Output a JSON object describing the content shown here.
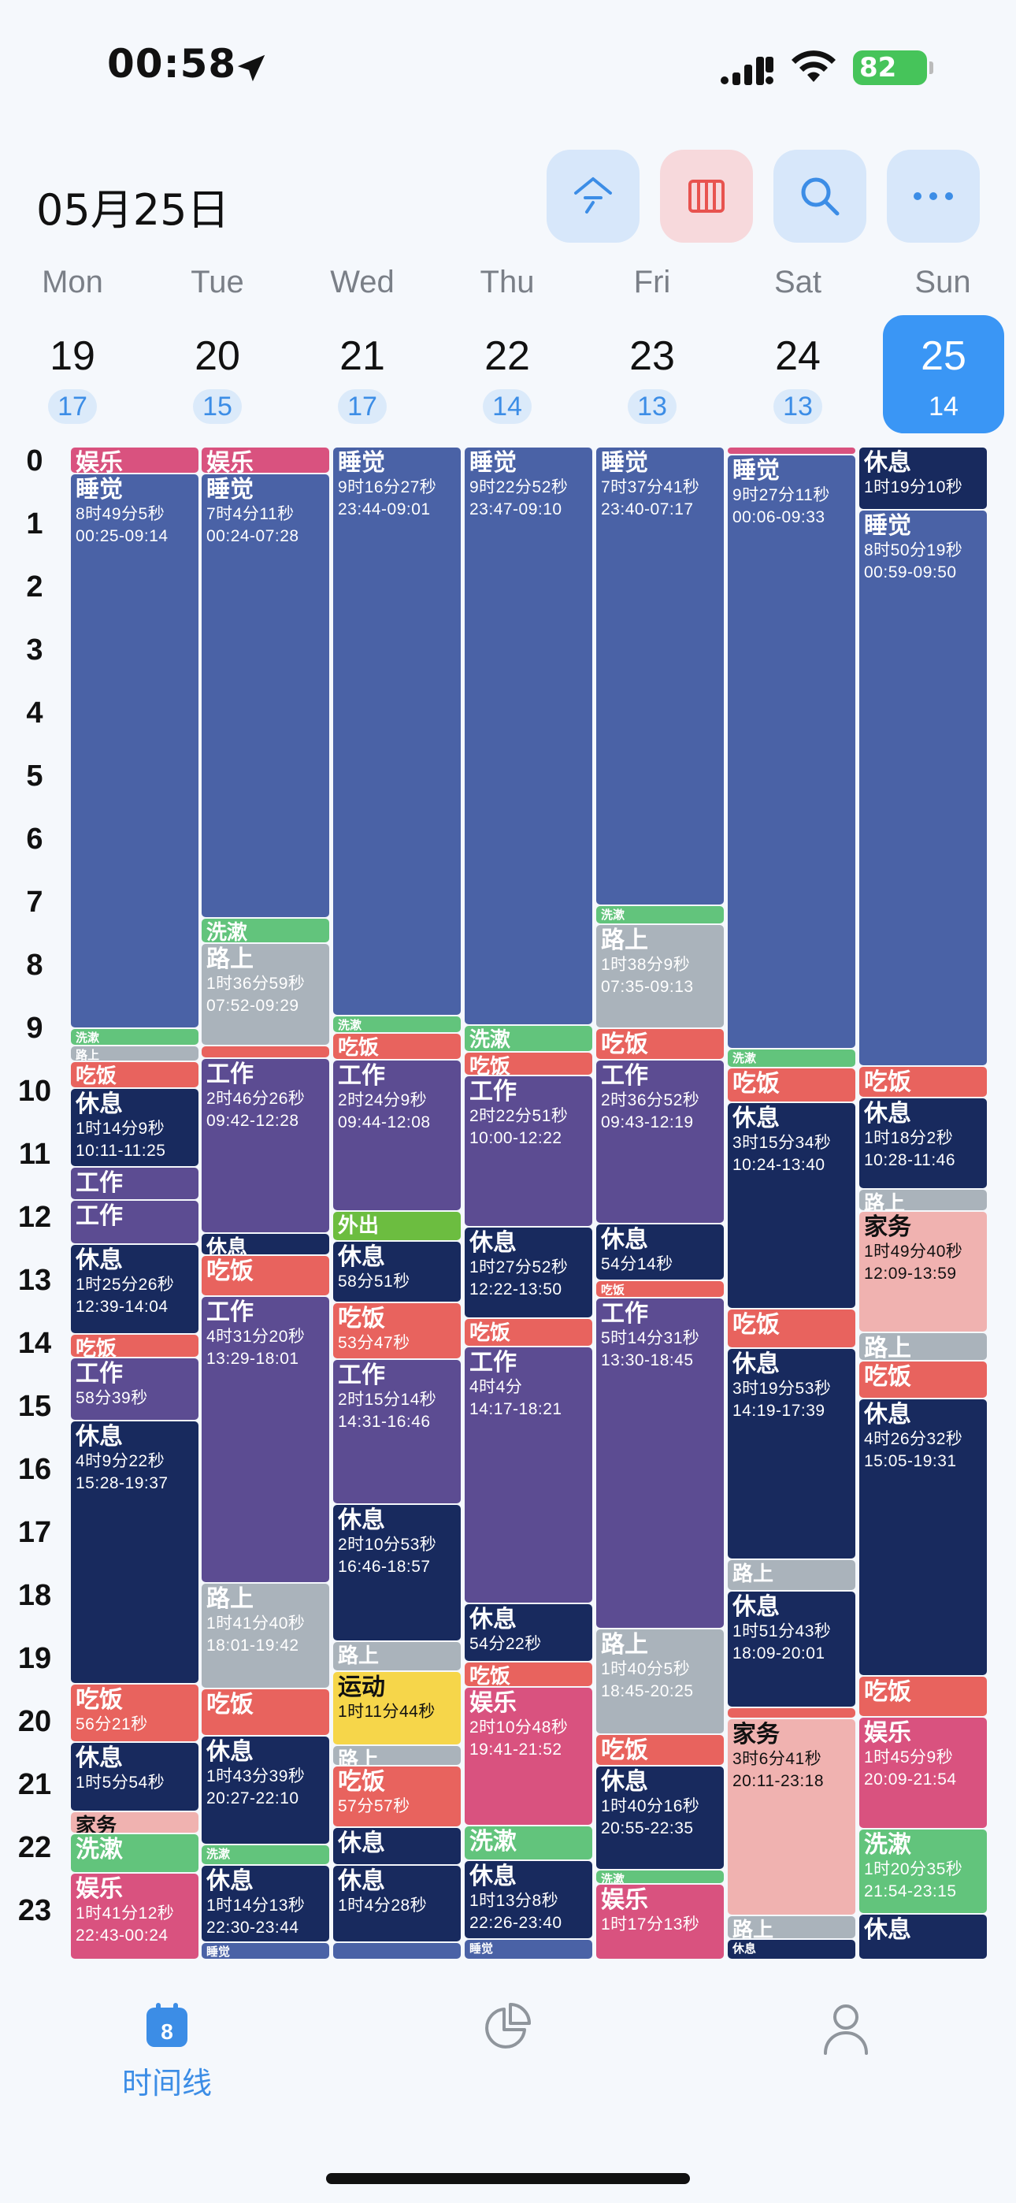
{
  "status_bar": {
    "time": "00:58",
    "battery": "82"
  },
  "header": {
    "date_title": "05月25日",
    "buttons": [
      {
        "name": "today-button",
        "icon": "today-icon"
      },
      {
        "name": "view-toggle-button",
        "icon": "columns-icon"
      },
      {
        "name": "search-button",
        "icon": "search-icon"
      },
      {
        "name": "more-button",
        "icon": "ellipsis-icon"
      }
    ]
  },
  "days": [
    {
      "name": "Mon",
      "num": "19",
      "badge": "17"
    },
    {
      "name": "Tue",
      "num": "20",
      "badge": "15"
    },
    {
      "name": "Wed",
      "num": "21",
      "badge": "17"
    },
    {
      "name": "Thu",
      "num": "22",
      "badge": "14"
    },
    {
      "name": "Fri",
      "num": "23",
      "badge": "13"
    },
    {
      "name": "Sat",
      "num": "24",
      "badge": "13"
    },
    {
      "name": "Sun",
      "num": "25",
      "badge": "14",
      "selected": true
    }
  ],
  "hours": [
    "0",
    "1",
    "2",
    "3",
    "4",
    "5",
    "6",
    "7",
    "8",
    "9",
    "10",
    "11",
    "12",
    "13",
    "14",
    "15",
    "16",
    "17",
    "18",
    "19",
    "20",
    "21",
    "22",
    "23"
  ],
  "colors": {
    "sleep": "#4a62a6",
    "rest": "#182a5e",
    "work": "#5c4c92",
    "eat": "#e8635e",
    "wash": "#62c47c",
    "road": "#aab3bb",
    "fun": "#d9527f",
    "house": "#f0b2b0",
    "out": "#6cbd40",
    "sport": "#f6d64a"
  },
  "events": [
    [
      {
        "c": "fun",
        "s": 0,
        "e": 0.42,
        "t": "娱乐"
      },
      {
        "c": "sleep",
        "s": 0.42,
        "e": 9.23,
        "t": "睡觉",
        "d1": "8时49分5秒",
        "d2": "00:25-09:14"
      },
      {
        "c": "wash",
        "s": 9.23,
        "e": 9.5,
        "t": "洗漱",
        "sz": "tiny"
      },
      {
        "c": "road",
        "s": 9.5,
        "e": 9.75,
        "t": "路上",
        "sz": "tiny"
      },
      {
        "c": "eat",
        "s": 9.75,
        "e": 10.18,
        "t": "吃饭",
        "sz": "small"
      },
      {
        "c": "rest",
        "s": 10.18,
        "e": 11.42,
        "t": "休息",
        "d1": "1时14分9秒",
        "d2": "10:11-11:25"
      },
      {
        "c": "work",
        "s": 11.42,
        "e": 11.95,
        "t": "工作"
      },
      {
        "c": "work",
        "s": 11.95,
        "e": 12.65,
        "t": "工作"
      },
      {
        "c": "rest",
        "s": 12.65,
        "e": 14.07,
        "t": "休息",
        "d1": "1时25分26秒",
        "d2": "12:39-14:04"
      },
      {
        "c": "eat",
        "s": 14.07,
        "e": 14.45,
        "t": "吃饭",
        "sz": "small"
      },
      {
        "c": "work",
        "s": 14.45,
        "e": 15.45,
        "t": "工作",
        "d1": "58分39秒"
      },
      {
        "c": "rest",
        "s": 15.45,
        "e": 19.62,
        "t": "休息",
        "d1": "4时9分22秒",
        "d2": "15:28-19:37"
      },
      {
        "c": "eat",
        "s": 19.62,
        "e": 20.55,
        "t": "吃饭",
        "d1": "56分21秒"
      },
      {
        "c": "rest",
        "s": 20.55,
        "e": 21.65,
        "t": "休息",
        "d1": "1时5分54秒"
      },
      {
        "c": "house",
        "s": 21.65,
        "e": 22.0,
        "t": "家务",
        "sz": "small",
        "dk": true
      },
      {
        "c": "wash",
        "s": 22.0,
        "e": 22.62,
        "t": "洗漱"
      },
      {
        "c": "fun",
        "s": 22.62,
        "e": 24,
        "t": "娱乐",
        "d1": "1时41分12秒",
        "d2": "22:43-00:24"
      }
    ],
    [
      {
        "c": "fun",
        "s": 0,
        "e": 0.42,
        "t": "娱乐"
      },
      {
        "c": "sleep",
        "s": 0.42,
        "e": 7.48,
        "t": "睡觉",
        "d1": "7时4分11秒",
        "d2": "00:24-07:28"
      },
      {
        "c": "wash",
        "s": 7.48,
        "e": 7.87,
        "t": "洗漱",
        "sz": "small"
      },
      {
        "c": "road",
        "s": 7.87,
        "e": 9.5,
        "t": "路上",
        "d1": "1时36分59秒",
        "d2": "07:52-09:29"
      },
      {
        "c": "eat",
        "s": 9.5,
        "e": 9.7,
        "t": "",
        "sz": "tiny"
      },
      {
        "c": "work",
        "s": 9.7,
        "e": 12.47,
        "t": "工作",
        "d1": "2时46分26秒",
        "d2": "09:42-12:28"
      },
      {
        "c": "rest",
        "s": 12.47,
        "e": 12.82,
        "t": "休息",
        "sz": "small"
      },
      {
        "c": "eat",
        "s": 12.82,
        "e": 13.48,
        "t": "吃饭"
      },
      {
        "c": "work",
        "s": 13.48,
        "e": 18.02,
        "t": "工作",
        "d1": "4时31分20秒",
        "d2": "13:29-18:01"
      },
      {
        "c": "road",
        "s": 18.02,
        "e": 19.7,
        "t": "路上",
        "d1": "1时41分40秒",
        "d2": "18:01-19:42"
      },
      {
        "c": "eat",
        "s": 19.7,
        "e": 20.45,
        "t": "吃饭"
      },
      {
        "c": "rest",
        "s": 20.45,
        "e": 22.17,
        "t": "休息",
        "d1": "1时43分39秒",
        "d2": "20:27-22:10"
      },
      {
        "c": "wash",
        "s": 22.17,
        "e": 22.5,
        "t": "洗漱",
        "sz": "tiny"
      },
      {
        "c": "rest",
        "s": 22.5,
        "e": 23.73,
        "t": "休息",
        "d1": "1时14分13秒",
        "d2": "22:30-23:44"
      },
      {
        "c": "sleep",
        "s": 23.73,
        "e": 24,
        "t": "睡觉",
        "sz": "tiny"
      }
    ],
    [
      {
        "c": "sleep",
        "s": 0,
        "e": 9.02,
        "t": "睡觉",
        "d1": "9时16分27秒",
        "d2": "23:44-09:01"
      },
      {
        "c": "wash",
        "s": 9.02,
        "e": 9.3,
        "t": "洗漱",
        "sz": "tiny"
      },
      {
        "c": "eat",
        "s": 9.3,
        "e": 9.73,
        "t": "吃饭",
        "sz": "small"
      },
      {
        "c": "work",
        "s": 9.73,
        "e": 12.13,
        "t": "工作",
        "d1": "2时24分9秒",
        "d2": "09:44-12:08"
      },
      {
        "c": "out",
        "s": 12.13,
        "e": 12.6,
        "t": "外出",
        "sz": "small"
      },
      {
        "c": "rest",
        "s": 12.6,
        "e": 13.57,
        "t": "休息",
        "d1": "58分51秒"
      },
      {
        "c": "eat",
        "s": 13.57,
        "e": 14.48,
        "t": "吃饭",
        "d1": "53分47秒"
      },
      {
        "c": "work",
        "s": 14.48,
        "e": 16.77,
        "t": "工作",
        "d1": "2时15分14秒",
        "d2": "14:31-16:46"
      },
      {
        "c": "rest",
        "s": 16.77,
        "e": 18.95,
        "t": "休息",
        "d1": "2时10分53秒",
        "d2": "16:46-18:57"
      },
      {
        "c": "road",
        "s": 18.95,
        "e": 19.42,
        "t": "路上",
        "sz": "small"
      },
      {
        "c": "sport",
        "s": 19.42,
        "e": 20.6,
        "t": "运动",
        "d1": "1时11分44秒",
        "dk": true
      },
      {
        "c": "road",
        "s": 20.6,
        "e": 20.92,
        "t": "路上",
        "sz": "small"
      },
      {
        "c": "eat",
        "s": 20.92,
        "e": 21.9,
        "t": "吃饭",
        "d1": "57分57秒"
      },
      {
        "c": "rest",
        "s": 21.9,
        "e": 22.5,
        "t": "休息"
      },
      {
        "c": "rest",
        "s": 22.5,
        "e": 23.73,
        "t": "休息",
        "d1": "1时4分28秒"
      },
      {
        "c": "sleep",
        "s": 23.73,
        "e": 24,
        "t": "",
        "sz": "tiny"
      }
    ],
    [
      {
        "c": "sleep",
        "s": 0,
        "e": 9.17,
        "t": "睡觉",
        "d1": "9时22分52秒",
        "d2": "23:47-09:10"
      },
      {
        "c": "wash",
        "s": 9.17,
        "e": 9.6,
        "t": "洗漱",
        "sz": "small"
      },
      {
        "c": "eat",
        "s": 9.6,
        "e": 9.98,
        "t": "吃饭",
        "sz": "small"
      },
      {
        "c": "work",
        "s": 9.98,
        "e": 12.37,
        "t": "工作",
        "d1": "2时22分51秒",
        "d2": "10:00-12:22"
      },
      {
        "c": "rest",
        "s": 12.37,
        "e": 13.83,
        "t": "休息",
        "d1": "1时27分52秒",
        "d2": "12:22-13:50"
      },
      {
        "c": "eat",
        "s": 13.83,
        "e": 14.28,
        "t": "吃饭",
        "sz": "small"
      },
      {
        "c": "work",
        "s": 14.28,
        "e": 18.35,
        "t": "工作",
        "d1": "4时4分",
        "d2": "14:17-18:21"
      },
      {
        "c": "rest",
        "s": 18.35,
        "e": 19.28,
        "t": "休息",
        "d1": "54分22秒"
      },
      {
        "c": "eat",
        "s": 19.28,
        "e": 19.68,
        "t": "吃饭",
        "sz": "small"
      },
      {
        "c": "fun",
        "s": 19.68,
        "e": 21.87,
        "t": "娱乐",
        "d1": "2时10分48秒",
        "d2": "19:41-21:52"
      },
      {
        "c": "wash",
        "s": 21.87,
        "e": 22.43,
        "t": "洗漱"
      },
      {
        "c": "rest",
        "s": 22.43,
        "e": 23.67,
        "t": "休息",
        "d1": "1时13分8秒",
        "d2": "22:26-23:40"
      },
      {
        "c": "sleep",
        "s": 23.67,
        "e": 24,
        "t": "睡觉",
        "sz": "tiny"
      }
    ],
    [
      {
        "c": "sleep",
        "s": 0,
        "e": 7.28,
        "t": "睡觉",
        "d1": "7时37分41秒",
        "d2": "23:40-07:17"
      },
      {
        "c": "wash",
        "s": 7.28,
        "e": 7.58,
        "t": "洗漱",
        "sz": "tiny"
      },
      {
        "c": "road",
        "s": 7.58,
        "e": 9.23,
        "t": "路上",
        "d1": "1时38分9秒",
        "d2": "07:35-09:13"
      },
      {
        "c": "eat",
        "s": 9.23,
        "e": 9.72,
        "t": "吃饭"
      },
      {
        "c": "work",
        "s": 9.72,
        "e": 12.32,
        "t": "工作",
        "d1": "2时36分52秒",
        "d2": "09:43-12:19"
      },
      {
        "c": "rest",
        "s": 12.32,
        "e": 13.23,
        "t": "休息",
        "d1": "54分14秒"
      },
      {
        "c": "eat",
        "s": 13.23,
        "e": 13.5,
        "t": "吃饭",
        "sz": "tiny"
      },
      {
        "c": "work",
        "s": 13.5,
        "e": 18.75,
        "t": "工作",
        "d1": "5时14分31秒",
        "d2": "13:30-18:45"
      },
      {
        "c": "road",
        "s": 18.75,
        "e": 20.42,
        "t": "路上",
        "d1": "1时40分5秒",
        "d2": "18:45-20:25"
      },
      {
        "c": "eat",
        "s": 20.42,
        "e": 20.92,
        "t": "吃饭"
      },
      {
        "c": "rest",
        "s": 20.92,
        "e": 22.58,
        "t": "休息",
        "d1": "1时40分16秒",
        "d2": "20:55-22:35"
      },
      {
        "c": "wash",
        "s": 22.58,
        "e": 22.8,
        "t": "洗漱",
        "sz": "tiny"
      },
      {
        "c": "fun",
        "s": 22.8,
        "e": 24,
        "t": "娱乐",
        "d1": "1时17分13秒"
      }
    ],
    [
      {
        "c": "fun",
        "s": 0,
        "e": 0.12,
        "t": "",
        "sz": "tiny"
      },
      {
        "c": "sleep",
        "s": 0.12,
        "e": 9.55,
        "t": "睡觉",
        "d1": "9时27分11秒",
        "d2": "00:06-09:33"
      },
      {
        "c": "wash",
        "s": 9.55,
        "e": 9.85,
        "t": "洗漱",
        "sz": "tiny"
      },
      {
        "c": "eat",
        "s": 9.85,
        "e": 10.4,
        "t": "吃饭"
      },
      {
        "c": "rest",
        "s": 10.4,
        "e": 13.68,
        "t": "休息",
        "d1": "3时15分34秒",
        "d2": "10:24-13:40"
      },
      {
        "c": "eat",
        "s": 13.68,
        "e": 14.3,
        "t": "吃饭"
      },
      {
        "c": "rest",
        "s": 14.3,
        "e": 17.65,
        "t": "休息",
        "d1": "3时19分53秒",
        "d2": "14:19-17:39"
      },
      {
        "c": "road",
        "s": 17.65,
        "e": 18.15,
        "t": "路上",
        "sz": "small"
      },
      {
        "c": "rest",
        "s": 18.15,
        "e": 20.0,
        "t": "休息",
        "d1": "1时51分43秒",
        "d2": "18:09-20:01"
      },
      {
        "c": "eat",
        "s": 20.0,
        "e": 20.18,
        "t": "",
        "sz": "tiny"
      },
      {
        "c": "house",
        "s": 20.18,
        "e": 23.3,
        "t": "家务",
        "d1": "3时6分41秒",
        "d2": "20:11-23:18",
        "dk": true
      },
      {
        "c": "road",
        "s": 23.3,
        "e": 23.67,
        "t": "路上",
        "sz": "small"
      },
      {
        "c": "rest",
        "s": 23.67,
        "e": 24,
        "t": "休息",
        "sz": "tiny"
      }
    ],
    [
      {
        "c": "rest",
        "s": 0,
        "e": 1.0,
        "t": "休息",
        "d1": "1时19分10秒"
      },
      {
        "c": "sleep",
        "s": 1.0,
        "e": 9.83,
        "t": "睡觉",
        "d1": "8时50分19秒",
        "d2": "00:59-09:50"
      },
      {
        "c": "eat",
        "s": 9.83,
        "e": 10.33,
        "t": "吃饭"
      },
      {
        "c": "rest",
        "s": 10.33,
        "e": 11.77,
        "t": "休息",
        "d1": "1时18分2秒",
        "d2": "10:28-11:46"
      },
      {
        "c": "road",
        "s": 11.77,
        "e": 12.12,
        "t": "路上",
        "sz": "small"
      },
      {
        "c": "house",
        "s": 12.12,
        "e": 14.05,
        "t": "家务",
        "d1": "1时49分40秒",
        "d2": "12:09-13:59",
        "dk": true
      },
      {
        "c": "road",
        "s": 14.05,
        "e": 14.5,
        "t": "路上"
      },
      {
        "c": "eat",
        "s": 14.5,
        "e": 15.1,
        "t": "吃饭"
      },
      {
        "c": "rest",
        "s": 15.1,
        "e": 19.5,
        "t": "休息",
        "d1": "4时26分32秒",
        "d2": "15:05-19:31"
      },
      {
        "c": "eat",
        "s": 19.5,
        "e": 20.15,
        "t": "吃饭"
      },
      {
        "c": "fun",
        "s": 20.15,
        "e": 21.93,
        "t": "娱乐",
        "d1": "1时45分9秒",
        "d2": "20:09-21:54"
      },
      {
        "c": "wash",
        "s": 21.93,
        "e": 23.27,
        "t": "洗漱",
        "d1": "1时20分35秒",
        "d2": "21:54-23:15"
      },
      {
        "c": "rest",
        "s": 23.27,
        "e": 24,
        "t": "休息"
      }
    ]
  ],
  "tabbar": {
    "tabs": [
      {
        "label": "时间线",
        "icon": "calendar-icon",
        "badge": "8",
        "active": true
      },
      {
        "label": "",
        "icon": "pie-chart-icon"
      },
      {
        "label": "",
        "icon": "person-icon"
      }
    ]
  }
}
